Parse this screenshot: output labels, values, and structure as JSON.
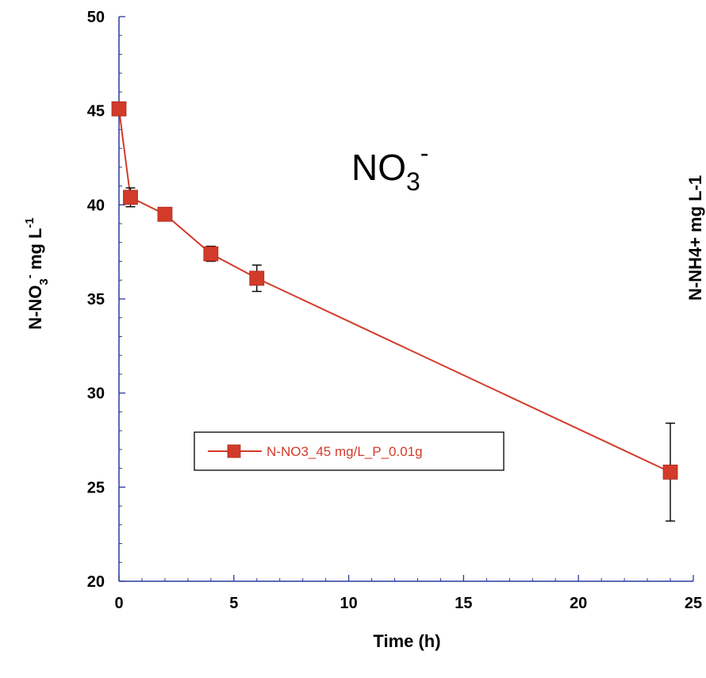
{
  "chart_data": {
    "type": "line",
    "xlabel": "Time (h)",
    "ylabel_main": "N-NO",
    "ylabel_sub": "3",
    "ylabel_sup": "-",
    "ylabel_unit": " mg L",
    "ylabel_unit_sup": "-1",
    "xlim": [
      0,
      25
    ],
    "ylim": [
      20,
      50
    ],
    "x_ticks": [
      "0",
      "5",
      "10",
      "15",
      "20",
      "25"
    ],
    "y_ticks": [
      "20",
      "25",
      "30",
      "35",
      "40",
      "45",
      "50"
    ],
    "x_tick_values": [
      0,
      5,
      10,
      15,
      20,
      25
    ],
    "y_tick_values": [
      20,
      25,
      30,
      35,
      40,
      45,
      50
    ],
    "grid": false,
    "legend_position": "center-left",
    "annotation": {
      "base": "NO",
      "sub": "3",
      "sup": "-"
    },
    "series": [
      {
        "name": "N-NO3_45 mg/L_P_0.01g",
        "color": "#d23b2a",
        "marker": "square",
        "x": [
          0,
          0.5,
          2,
          4,
          6,
          24
        ],
        "y": [
          45.1,
          40.4,
          39.5,
          37.4,
          36.1,
          25.8
        ],
        "error": [
          0,
          0.5,
          0.15,
          0.4,
          0.7,
          2.6
        ]
      }
    ],
    "axis_color": "#2b3a9e",
    "partial_right_ylabel": "N-NH4+ mg L-1"
  }
}
